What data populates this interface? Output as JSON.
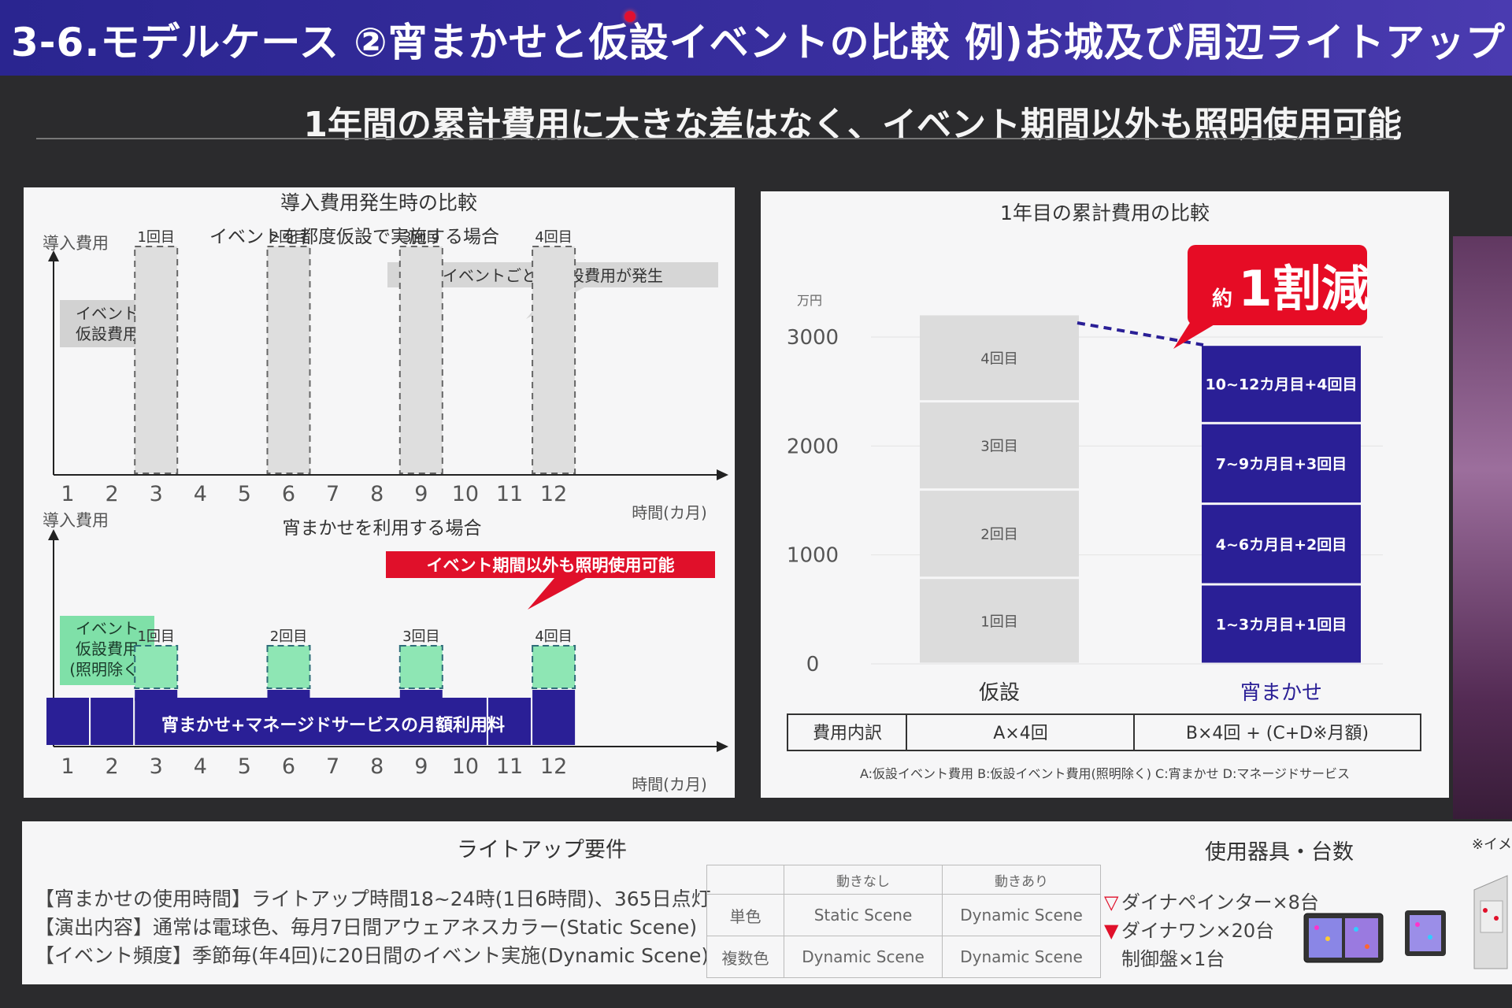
{
  "slide_title": "3-6.モデルケース ②宵まかせと仮設イベントの比較 例)お城及び周辺ライトアップ",
  "subtitle": "1年間の累計費用に大きな差はなく、イベント期間以外も照明使用可能",
  "left_panel": {
    "title": "導入費用発生時の比較",
    "top": {
      "ylabel": "導入費用",
      "heading": "イベントを都度仮設で実施する場合",
      "callout": "イベントごとに仮設費用が発生",
      "legend": [
        "イベント",
        "仮設費用"
      ],
      "event_labels": [
        "1回目",
        "2回目",
        "3回目",
        "4回目"
      ],
      "event_months": [
        3,
        6,
        9,
        12
      ],
      "months": [
        "1",
        "2",
        "3",
        "4",
        "5",
        "6",
        "7",
        "8",
        "9",
        "10",
        "11",
        "12"
      ],
      "xunit": "時間(カ月)"
    },
    "bottom": {
      "ylabel": "導入費用",
      "heading": "宵まかせを利用する場合",
      "callout": "イベント期間以外も照明使用可能",
      "legend": [
        "イベント",
        "仮設費用",
        "(照明除く)"
      ],
      "event_labels": [
        "1回目",
        "2回目",
        "3回目",
        "4回目"
      ],
      "event_months": [
        3,
        6,
        9,
        12
      ],
      "bar_label": "宵まかせ+マネージドサービスの月額利用料",
      "months": [
        "1",
        "2",
        "3",
        "4",
        "5",
        "6",
        "7",
        "8",
        "9",
        "10",
        "11",
        "12"
      ],
      "xunit": "時間(カ月)"
    }
  },
  "right_panel": {
    "title": "1年目の累計費用の比較",
    "unit": "万円",
    "badge_small": "約",
    "badge_big": "1割減",
    "cost_rows": {
      "header": "費用内訳",
      "a": "A×4回",
      "b": "B×4回 + (C+D※月額)"
    },
    "footnote": "A:仮設イベント費用 B:仮設イベント費用(照明除く) C:宵まかせ D:マネージドサービス"
  },
  "chart_data": {
    "type": "bar",
    "stacked": true,
    "categories": [
      "仮設",
      "宵まかせ"
    ],
    "yticks": [
      "0",
      "1000",
      "2000",
      "3000"
    ],
    "ylim": [
      0,
      3200
    ],
    "series_colors": {
      "仮設": "#dcdcdc",
      "宵まかせ": "#2a1f96"
    },
    "series": [
      {
        "segments": [
          {
            "label": "1回目",
            "value": 790
          },
          {
            "label": "2回目",
            "value": 810
          },
          {
            "label": "3回目",
            "value": 810
          },
          {
            "label": "4回目",
            "value": 800
          }
        ]
      },
      {
        "segments": [
          {
            "label": "1~3カ月目+1回目",
            "value": 730
          },
          {
            "label": "4~6カ月目+2回目",
            "value": 740
          },
          {
            "label": "7~9カ月目+3回目",
            "value": 740
          },
          {
            "label": "10~12カ月目+4回目",
            "value": 720
          }
        ]
      }
    ]
  },
  "requirements": {
    "title": "ライトアップ要件",
    "lines": [
      "【宵まかせの使用時間】ライトアップ時間18~24時(1日6時間)、365日点灯",
      "【演出内容】通常は電球色、毎月7日間アウェアネスカラー(Static Scene)",
      "【イベント頻度】季節毎(年4回)に20日間のイベント実施(Dynamic Scene)"
    ],
    "table": {
      "headers": [
        "",
        "動きなし",
        "動きあり"
      ],
      "rows": [
        [
          "単色",
          "Static Scene",
          "Dynamic Scene"
        ],
        [
          "複数色",
          "Dynamic Scene",
          "Dynamic Scene"
        ]
      ]
    }
  },
  "equipment": {
    "title": "使用器具・台数",
    "lines": [
      "ダイナペインター×8台",
      "ダイナワン×20台",
      "制御盤×1台"
    ],
    "markers": [
      "▽",
      "▼",
      ""
    ],
    "note": "※イメ"
  }
}
